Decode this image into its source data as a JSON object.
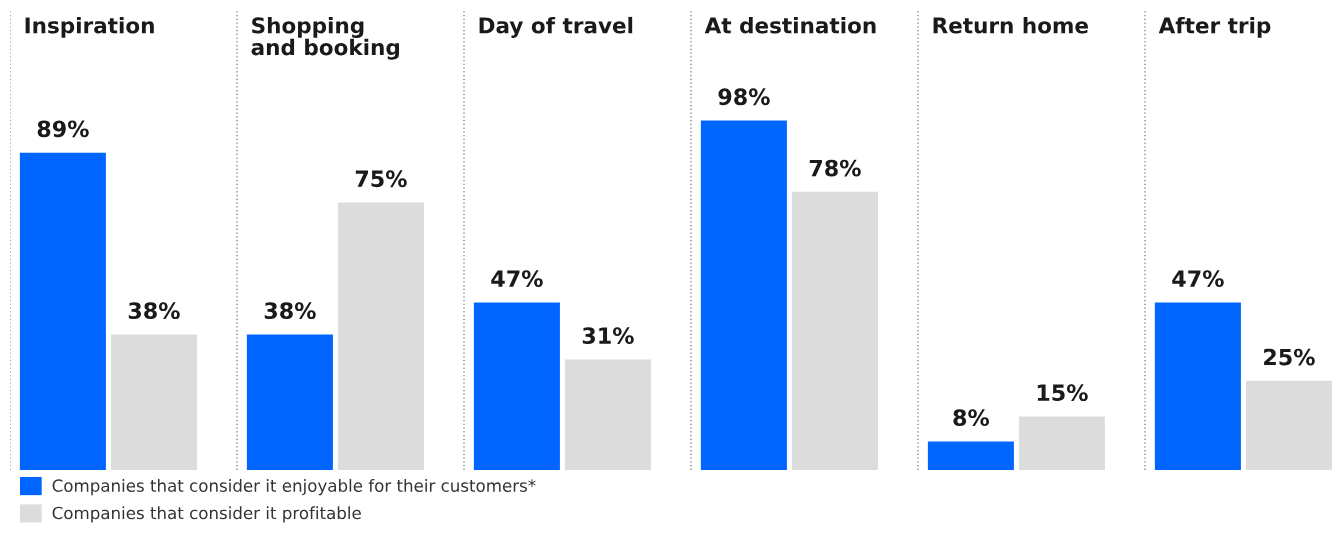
{
  "chart_data": {
    "type": "bar",
    "categories": [
      "Inspiration",
      "Shopping\nand booking",
      "Day of travel",
      "At destination",
      "Return home",
      "After trip"
    ],
    "series": [
      {
        "name": "Companies that consider it enjoyable for their customers*",
        "color": "#0066ff",
        "values": [
          89,
          38,
          47,
          98,
          8,
          47
        ],
        "value_labels": [
          "89%",
          "38%",
          "47%",
          "98%",
          "8%",
          "47%"
        ]
      },
      {
        "name": "Companies that consider it profitable",
        "color": "#dcdcdc",
        "values": [
          38,
          75,
          31,
          78,
          15,
          25
        ],
        "value_labels": [
          "38%",
          "75%",
          "31%",
          "78%",
          "15%",
          "25%"
        ]
      }
    ],
    "ylim": [
      0,
      129
    ],
    "grid": "x",
    "legend": "bottom left"
  }
}
